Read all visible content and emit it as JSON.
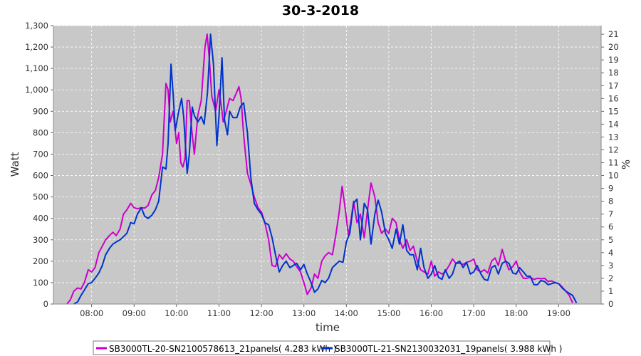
{
  "chart_data": {
    "type": "line",
    "title": "30-3-2018",
    "xlabel": "time",
    "ylabel": "Watt",
    "ylabel_right": "%",
    "xlim": [
      7.1,
      20.0
    ],
    "ylim": [
      0,
      1300
    ],
    "ylim_right": [
      0,
      21.67
    ],
    "x_ticks": [
      "08:00",
      "09:00",
      "10:00",
      "11:00",
      "12:00",
      "13:00",
      "14:00",
      "15:00",
      "16:00",
      "17:00",
      "18:00",
      "19:00"
    ],
    "y_ticks": [
      "0",
      "100",
      "200",
      "300",
      "400",
      "500",
      "600",
      "700",
      "800",
      "900",
      "1,000",
      "1,100",
      "1,200",
      "1,300"
    ],
    "y_ticks_right": [
      "0",
      "1",
      "2",
      "3",
      "4",
      "5",
      "6",
      "7",
      "8",
      "9",
      "10",
      "11",
      "12",
      "13",
      "14",
      "15",
      "16",
      "17",
      "18",
      "19",
      "20",
      "21"
    ],
    "grid": true,
    "legend_position": "bottom",
    "colors": {
      "plot_bg": "#c8c8c8",
      "grid": "#ffffff"
    },
    "series": [
      {
        "name": "SB3000TL-20-SN2100578613_21panels( 4.283 kWh )",
        "color": "#cc00cc",
        "points": [
          [
            7.42,
            0
          ],
          [
            7.5,
            20
          ],
          [
            7.58,
            60
          ],
          [
            7.67,
            75
          ],
          [
            7.75,
            70
          ],
          [
            7.83,
            100
          ],
          [
            7.92,
            160
          ],
          [
            8.0,
            150
          ],
          [
            8.08,
            170
          ],
          [
            8.17,
            240
          ],
          [
            8.25,
            270
          ],
          [
            8.33,
            300
          ],
          [
            8.42,
            320
          ],
          [
            8.5,
            335
          ],
          [
            8.58,
            320
          ],
          [
            8.67,
            350
          ],
          [
            8.75,
            420
          ],
          [
            8.83,
            440
          ],
          [
            8.92,
            470
          ],
          [
            9.0,
            450
          ],
          [
            9.08,
            445
          ],
          [
            9.17,
            450
          ],
          [
            9.25,
            448
          ],
          [
            9.33,
            460
          ],
          [
            9.42,
            510
          ],
          [
            9.5,
            530
          ],
          [
            9.58,
            590
          ],
          [
            9.67,
            700
          ],
          [
            9.75,
            1030
          ],
          [
            9.8,
            1000
          ],
          [
            9.85,
            850
          ],
          [
            9.92,
            900
          ],
          [
            10.0,
            750
          ],
          [
            10.05,
            800
          ],
          [
            10.1,
            660
          ],
          [
            10.15,
            640
          ],
          [
            10.2,
            680
          ],
          [
            10.25,
            950
          ],
          [
            10.3,
            950
          ],
          [
            10.35,
            830
          ],
          [
            10.42,
            700
          ],
          [
            10.5,
            880
          ],
          [
            10.58,
            950
          ],
          [
            10.67,
            1200
          ],
          [
            10.72,
            1260
          ],
          [
            10.77,
            1150
          ],
          [
            10.83,
            970
          ],
          [
            10.92,
            900
          ],
          [
            11.0,
            1000
          ],
          [
            11.05,
            930
          ],
          [
            11.1,
            850
          ],
          [
            11.17,
            900
          ],
          [
            11.25,
            960
          ],
          [
            11.33,
            950
          ],
          [
            11.42,
            990
          ],
          [
            11.47,
            1015
          ],
          [
            11.52,
            960
          ],
          [
            11.58,
            790
          ],
          [
            11.67,
            610
          ],
          [
            11.75,
            560
          ],
          [
            11.83,
            500
          ],
          [
            11.92,
            450
          ],
          [
            12.0,
            430
          ],
          [
            12.08,
            380
          ],
          [
            12.17,
            300
          ],
          [
            12.25,
            180
          ],
          [
            12.33,
            175
          ],
          [
            12.42,
            230
          ],
          [
            12.5,
            210
          ],
          [
            12.58,
            235
          ],
          [
            12.67,
            210
          ],
          [
            12.75,
            200
          ],
          [
            12.83,
            175
          ],
          [
            12.92,
            150
          ],
          [
            13.0,
            100
          ],
          [
            13.08,
            45
          ],
          [
            13.17,
            75
          ],
          [
            13.25,
            140
          ],
          [
            13.33,
            120
          ],
          [
            13.42,
            200
          ],
          [
            13.5,
            225
          ],
          [
            13.58,
            240
          ],
          [
            13.67,
            230
          ],
          [
            13.75,
            320
          ],
          [
            13.83,
            430
          ],
          [
            13.9,
            550
          ],
          [
            13.97,
            450
          ],
          [
            14.05,
            320
          ],
          [
            14.1,
            380
          ],
          [
            14.17,
            480
          ],
          [
            14.25,
            380
          ],
          [
            14.33,
            420
          ],
          [
            14.42,
            310
          ],
          [
            14.5,
            440
          ],
          [
            14.58,
            565
          ],
          [
            14.67,
            500
          ],
          [
            14.75,
            380
          ],
          [
            14.83,
            330
          ],
          [
            14.92,
            350
          ],
          [
            15.0,
            330
          ],
          [
            15.08,
            400
          ],
          [
            15.17,
            380
          ],
          [
            15.25,
            300
          ],
          [
            15.33,
            260
          ],
          [
            15.42,
            300
          ],
          [
            15.5,
            250
          ],
          [
            15.58,
            270
          ],
          [
            15.67,
            200
          ],
          [
            15.75,
            160
          ],
          [
            15.83,
            150
          ],
          [
            15.92,
            140
          ],
          [
            16.0,
            200
          ],
          [
            16.08,
            130
          ],
          [
            16.17,
            150
          ],
          [
            16.25,
            140
          ],
          [
            16.33,
            150
          ],
          [
            16.42,
            180
          ],
          [
            16.5,
            210
          ],
          [
            16.58,
            190
          ],
          [
            16.67,
            190
          ],
          [
            16.75,
            185
          ],
          [
            16.83,
            195
          ],
          [
            16.92,
            200
          ],
          [
            17.0,
            210
          ],
          [
            17.08,
            160
          ],
          [
            17.17,
            150
          ],
          [
            17.25,
            160
          ],
          [
            17.33,
            145
          ],
          [
            17.42,
            200
          ],
          [
            17.5,
            215
          ],
          [
            17.58,
            180
          ],
          [
            17.67,
            255
          ],
          [
            17.75,
            200
          ],
          [
            17.83,
            160
          ],
          [
            17.92,
            175
          ],
          [
            18.0,
            200
          ],
          [
            18.08,
            150
          ],
          [
            18.17,
            120
          ],
          [
            18.25,
            120
          ],
          [
            18.33,
            125
          ],
          [
            18.42,
            115
          ],
          [
            18.5,
            120
          ],
          [
            18.58,
            118
          ],
          [
            18.67,
            120
          ],
          [
            18.75,
            105
          ],
          [
            18.83,
            108
          ],
          [
            18.92,
            100
          ],
          [
            19.0,
            95
          ],
          [
            19.08,
            80
          ],
          [
            19.17,
            60
          ],
          [
            19.25,
            40
          ],
          [
            19.33,
            5
          ]
        ]
      },
      {
        "name": "SB3000TL-21-SN2130032031_19panels( 3.988 kWh )",
        "color": "#0033cc",
        "points": [
          [
            7.58,
            0
          ],
          [
            7.67,
            10
          ],
          [
            7.75,
            40
          ],
          [
            7.83,
            65
          ],
          [
            7.92,
            95
          ],
          [
            8.0,
            100
          ],
          [
            8.08,
            120
          ],
          [
            8.17,
            145
          ],
          [
            8.25,
            180
          ],
          [
            8.33,
            230
          ],
          [
            8.42,
            260
          ],
          [
            8.5,
            280
          ],
          [
            8.58,
            290
          ],
          [
            8.67,
            300
          ],
          [
            8.75,
            315
          ],
          [
            8.83,
            330
          ],
          [
            8.92,
            380
          ],
          [
            9.0,
            375
          ],
          [
            9.08,
            420
          ],
          [
            9.17,
            450
          ],
          [
            9.25,
            410
          ],
          [
            9.33,
            400
          ],
          [
            9.42,
            415
          ],
          [
            9.5,
            440
          ],
          [
            9.58,
            480
          ],
          [
            9.67,
            640
          ],
          [
            9.75,
            630
          ],
          [
            9.8,
            750
          ],
          [
            9.87,
            1120
          ],
          [
            9.92,
            980
          ],
          [
            9.97,
            810
          ],
          [
            10.05,
            900
          ],
          [
            10.12,
            960
          ],
          [
            10.17,
            870
          ],
          [
            10.25,
            610
          ],
          [
            10.3,
            700
          ],
          [
            10.37,
            920
          ],
          [
            10.42,
            880
          ],
          [
            10.5,
            850
          ],
          [
            10.58,
            875
          ],
          [
            10.65,
            840
          ],
          [
            10.73,
            990
          ],
          [
            10.8,
            1260
          ],
          [
            10.87,
            1120
          ],
          [
            10.95,
            740
          ],
          [
            11.0,
            880
          ],
          [
            11.07,
            1150
          ],
          [
            11.13,
            860
          ],
          [
            11.2,
            790
          ],
          [
            11.25,
            900
          ],
          [
            11.33,
            870
          ],
          [
            11.42,
            870
          ],
          [
            11.5,
            920
          ],
          [
            11.58,
            940
          ],
          [
            11.67,
            800
          ],
          [
            11.75,
            590
          ],
          [
            11.83,
            470
          ],
          [
            11.92,
            440
          ],
          [
            12.0,
            420
          ],
          [
            12.08,
            380
          ],
          [
            12.17,
            370
          ],
          [
            12.25,
            310
          ],
          [
            12.33,
            230
          ],
          [
            12.42,
            150
          ],
          [
            12.5,
            180
          ],
          [
            12.58,
            200
          ],
          [
            12.67,
            170
          ],
          [
            12.75,
            180
          ],
          [
            12.83,
            190
          ],
          [
            12.92,
            160
          ],
          [
            13.0,
            185
          ],
          [
            13.08,
            140
          ],
          [
            13.17,
            100
          ],
          [
            13.25,
            55
          ],
          [
            13.33,
            70
          ],
          [
            13.42,
            110
          ],
          [
            13.5,
            100
          ],
          [
            13.58,
            120
          ],
          [
            13.67,
            170
          ],
          [
            13.75,
            185
          ],
          [
            13.83,
            200
          ],
          [
            13.92,
            195
          ],
          [
            14.0,
            290
          ],
          [
            14.08,
            330
          ],
          [
            14.17,
            470
          ],
          [
            14.25,
            490
          ],
          [
            14.33,
            300
          ],
          [
            14.42,
            470
          ],
          [
            14.5,
            440
          ],
          [
            14.58,
            280
          ],
          [
            14.67,
            420
          ],
          [
            14.75,
            485
          ],
          [
            14.83,
            430
          ],
          [
            14.92,
            330
          ],
          [
            15.0,
            300
          ],
          [
            15.08,
            260
          ],
          [
            15.17,
            350
          ],
          [
            15.25,
            280
          ],
          [
            15.33,
            370
          ],
          [
            15.42,
            250
          ],
          [
            15.5,
            230
          ],
          [
            15.58,
            230
          ],
          [
            15.67,
            160
          ],
          [
            15.75,
            260
          ],
          [
            15.83,
            170
          ],
          [
            15.92,
            120
          ],
          [
            16.0,
            140
          ],
          [
            16.08,
            180
          ],
          [
            16.17,
            125
          ],
          [
            16.25,
            115
          ],
          [
            16.33,
            160
          ],
          [
            16.42,
            120
          ],
          [
            16.5,
            140
          ],
          [
            16.58,
            190
          ],
          [
            16.67,
            200
          ],
          [
            16.75,
            170
          ],
          [
            16.83,
            195
          ],
          [
            16.92,
            140
          ],
          [
            17.0,
            150
          ],
          [
            17.08,
            180
          ],
          [
            17.17,
            140
          ],
          [
            17.25,
            115
          ],
          [
            17.33,
            110
          ],
          [
            17.42,
            170
          ],
          [
            17.5,
            180
          ],
          [
            17.58,
            140
          ],
          [
            17.67,
            190
          ],
          [
            17.75,
            200
          ],
          [
            17.83,
            190
          ],
          [
            17.92,
            145
          ],
          [
            18.0,
            140
          ],
          [
            18.08,
            170
          ],
          [
            18.17,
            150
          ],
          [
            18.25,
            130
          ],
          [
            18.33,
            130
          ],
          [
            18.42,
            90
          ],
          [
            18.5,
            90
          ],
          [
            18.58,
            110
          ],
          [
            18.67,
            105
          ],
          [
            18.75,
            90
          ],
          [
            18.83,
            95
          ],
          [
            18.92,
            100
          ],
          [
            19.0,
            95
          ],
          [
            19.08,
            75
          ],
          [
            19.17,
            60
          ],
          [
            19.25,
            50
          ],
          [
            19.33,
            40
          ],
          [
            19.42,
            5
          ]
        ]
      }
    ]
  }
}
